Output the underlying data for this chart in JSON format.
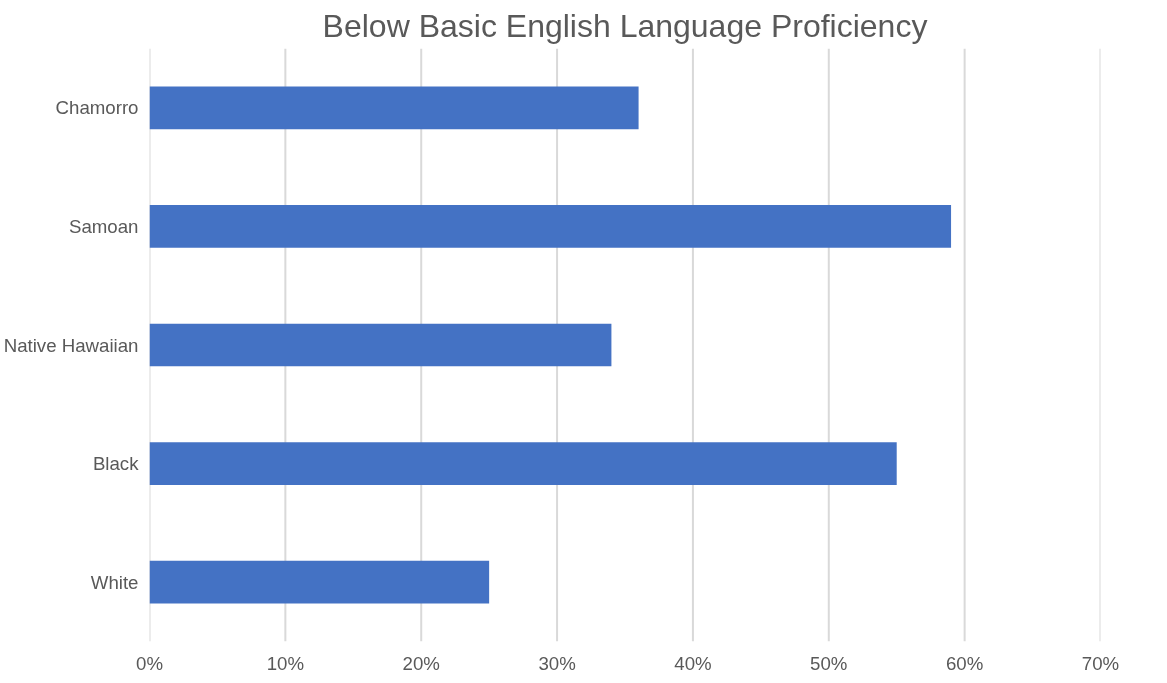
{
  "chart_data": {
    "type": "bar",
    "orientation": "horizontal",
    "title": "Below Basic English Language Proficiency",
    "categories": [
      "Chamorro",
      "Samoan",
      "Native Hawaiian",
      "Black",
      "White"
    ],
    "values": [
      36,
      59,
      34,
      55,
      25
    ],
    "color": "#4472c4",
    "xlim": [
      0,
      70
    ],
    "xticks": [
      {
        "value": 0,
        "label": "0%"
      },
      {
        "value": 10,
        "label": "10%"
      },
      {
        "value": 20,
        "label": "20%"
      },
      {
        "value": 30,
        "label": "30%"
      },
      {
        "value": 40,
        "label": "40%"
      },
      {
        "value": 50,
        "label": "50%"
      },
      {
        "value": 60,
        "label": "60%"
      },
      {
        "value": 70,
        "label": "70%"
      }
    ],
    "grid": "x"
  }
}
